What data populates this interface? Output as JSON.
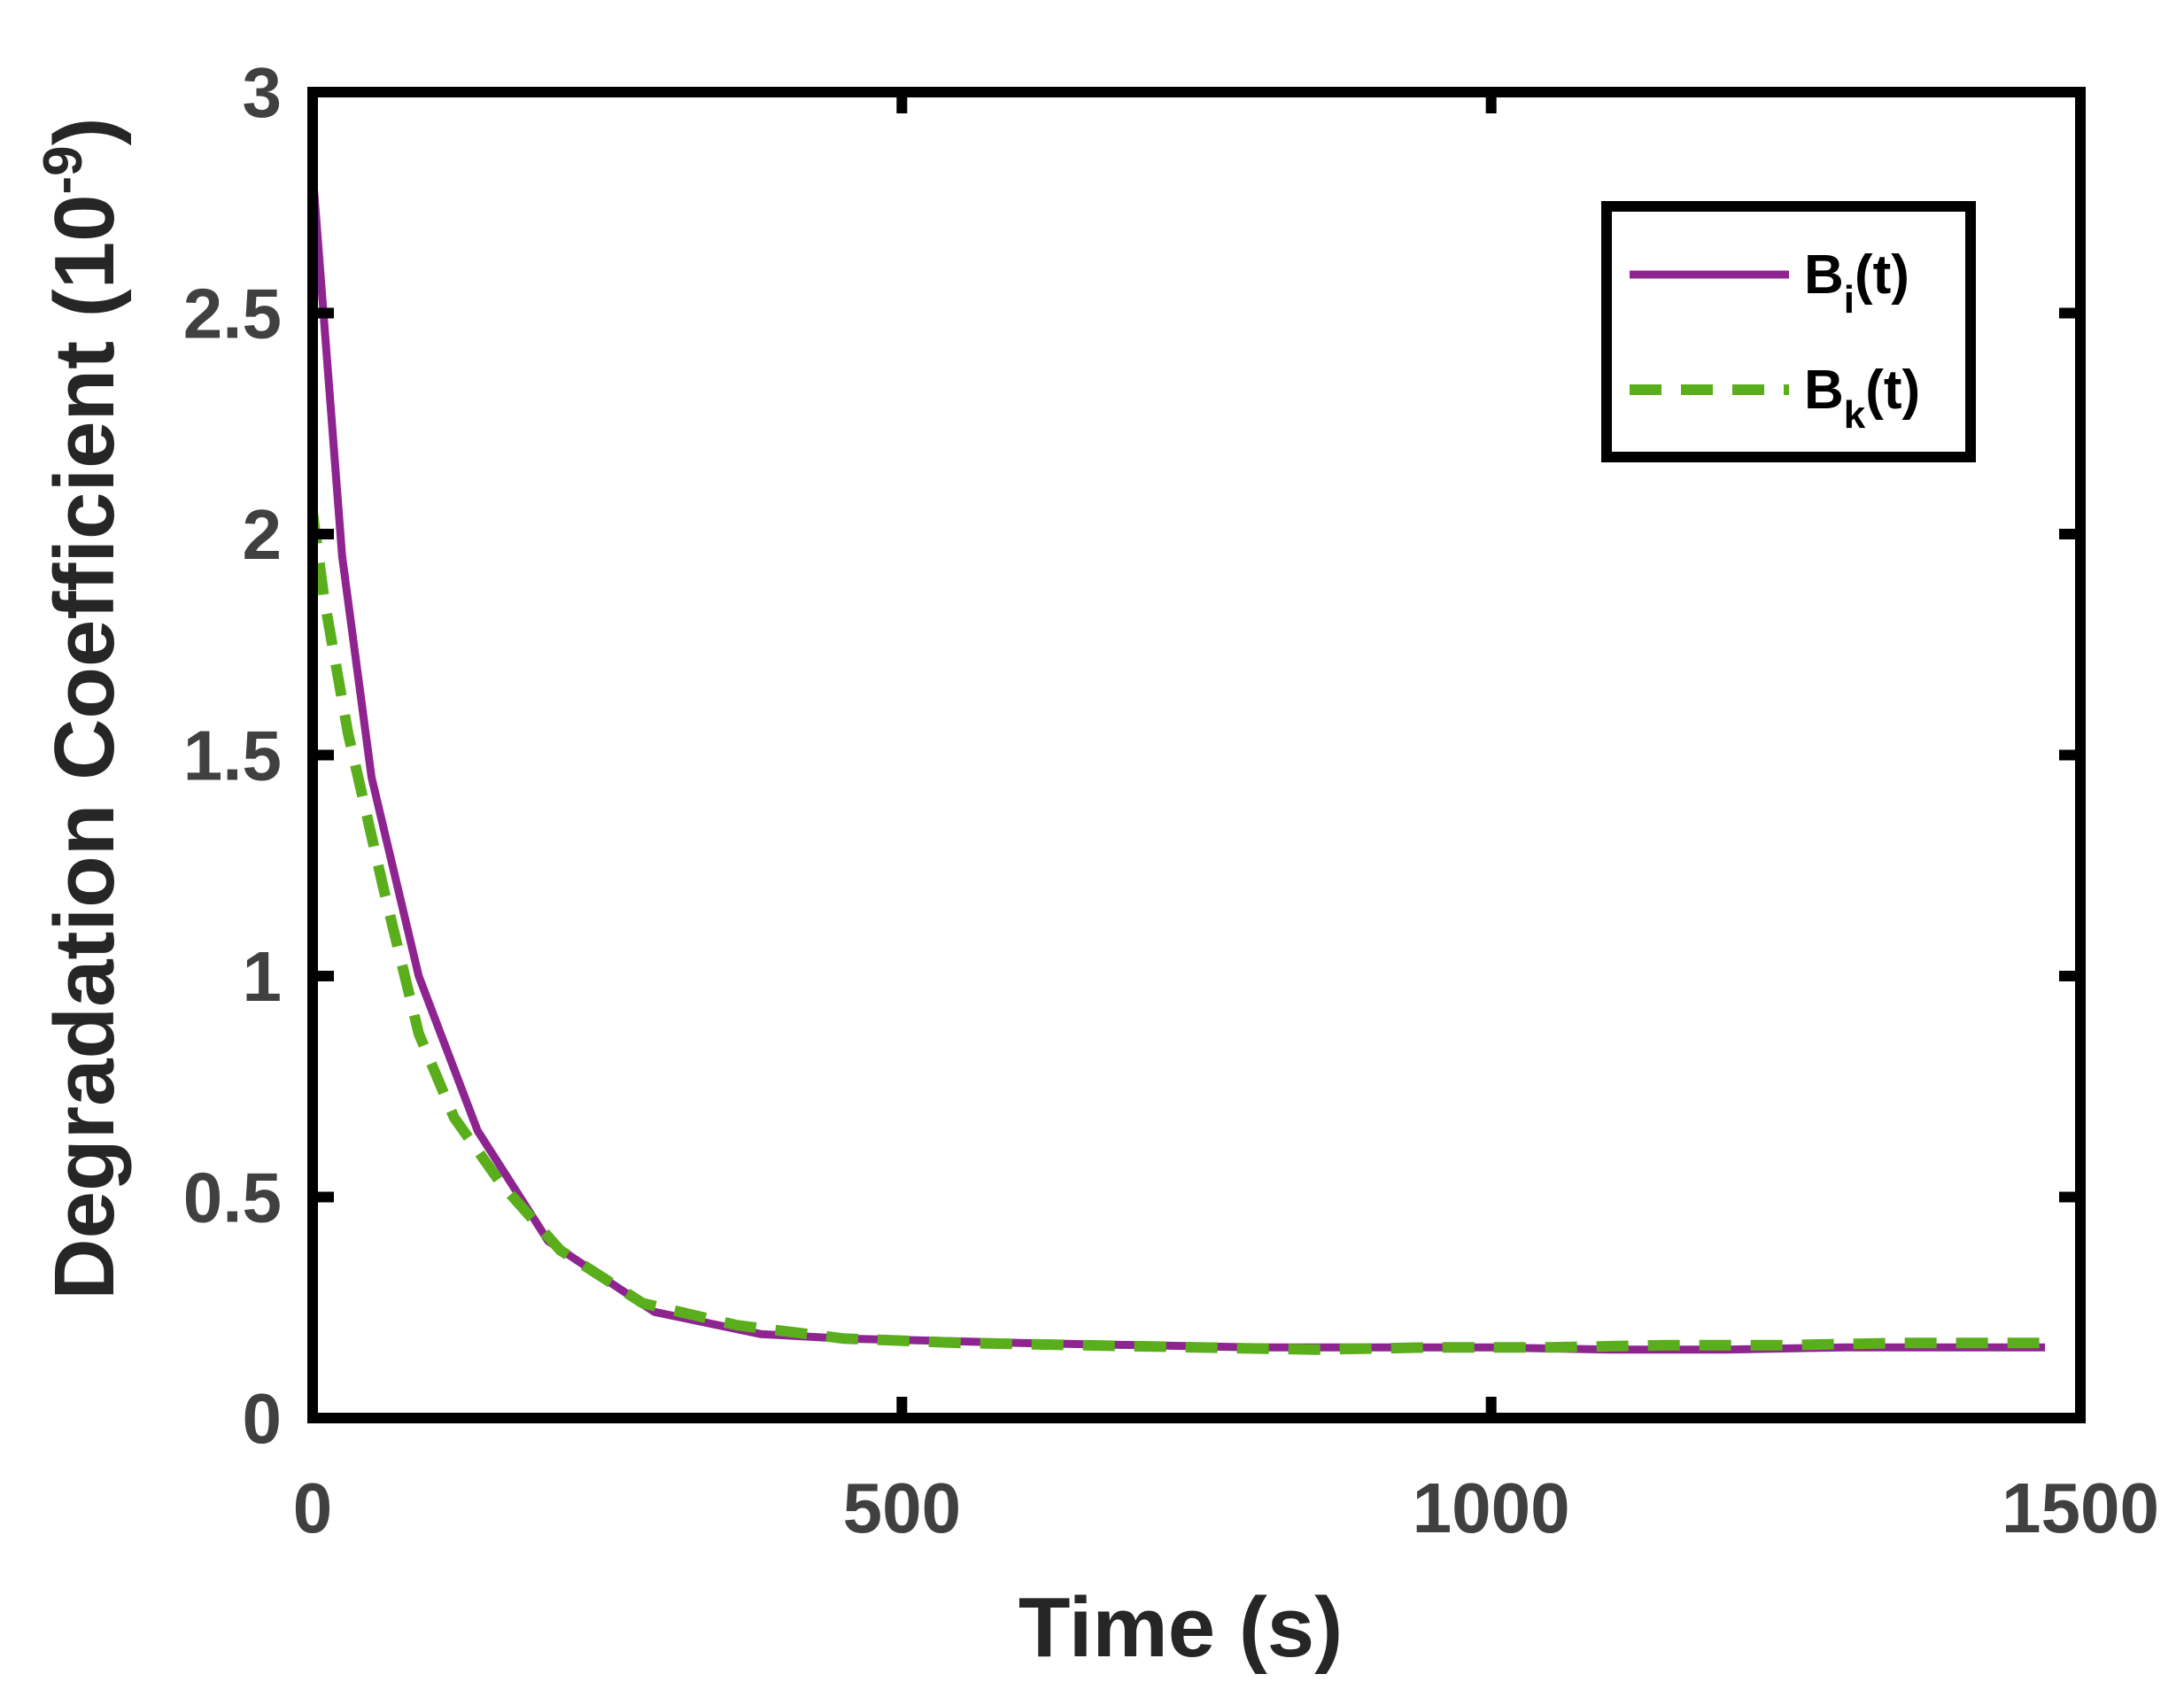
{
  "chart_data": {
    "type": "line",
    "xlabel": "Time (s)",
    "ylabel": "Degradation Coefficient (10",
    "ylabel_exponent": "-9",
    "ylabel_close": ")",
    "xlim": [
      0,
      1500
    ],
    "ylim": [
      0,
      3
    ],
    "xticks": [
      0,
      500,
      1000,
      1500
    ],
    "xtick_labels": [
      "0",
      "500",
      "1000",
      "1500"
    ],
    "yticks": [
      0,
      0.5,
      1,
      1.5,
      2,
      2.5,
      3
    ],
    "ytick_labels": [
      "0",
      "0.5",
      "1",
      "1.5",
      "2",
      "2.5",
      "3"
    ],
    "grid": false,
    "legend_position": "top-right",
    "series": [
      {
        "name_main": "B",
        "name_sub": "i",
        "name_tail": "(t)",
        "color": "#8E2490",
        "line_style": "solid",
        "x": [
          0,
          25,
          50,
          90,
          140,
          200,
          290,
          380,
          450,
          600,
          800,
          1000,
          1100,
          1200,
          1300,
          1400,
          1470
        ],
        "y": [
          2.82,
          1.95,
          1.45,
          1.0,
          0.65,
          0.4,
          0.24,
          0.19,
          0.18,
          0.17,
          0.16,
          0.16,
          0.155,
          0.155,
          0.16,
          0.16,
          0.16
        ]
      },
      {
        "name_main": "B",
        "name_sub": "k",
        "name_tail": "(t)",
        "color": "#5AAE1B",
        "line_style": "dashed",
        "x": [
          0,
          10,
          30,
          60,
          90,
          120,
          160,
          210,
          280,
          360,
          450,
          550,
          650,
          750,
          850,
          950,
          1050,
          1150,
          1250,
          1350,
          1470
        ],
        "y": [
          2.05,
          1.85,
          1.55,
          1.2,
          0.87,
          0.68,
          0.53,
          0.38,
          0.26,
          0.21,
          0.18,
          0.17,
          0.165,
          0.16,
          0.155,
          0.16,
          0.16,
          0.165,
          0.165,
          0.17,
          0.17
        ]
      }
    ]
  }
}
